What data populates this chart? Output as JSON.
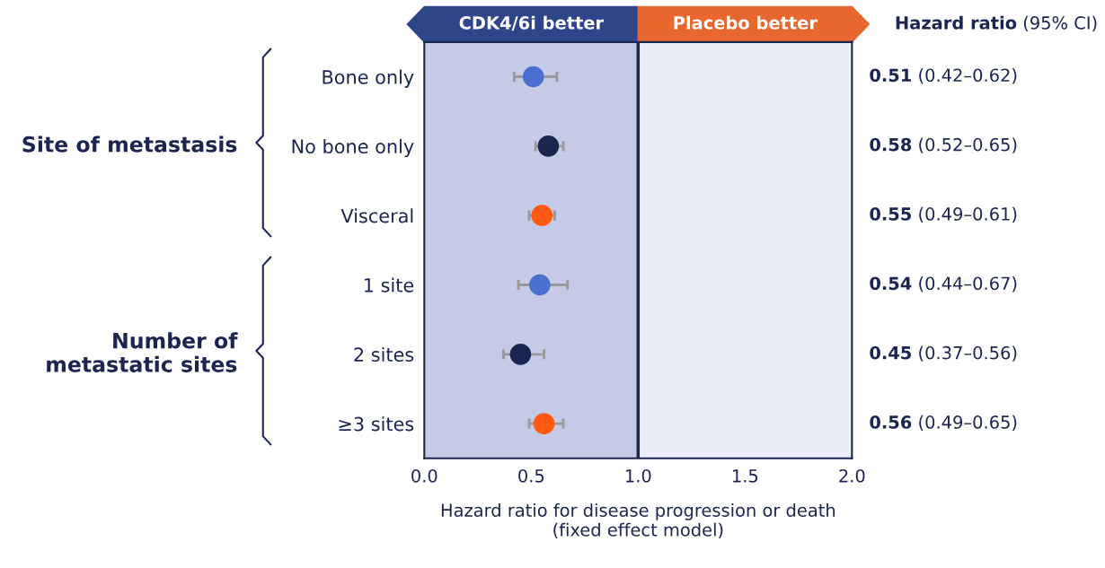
{
  "chart_data": {
    "type": "scatter",
    "orientation": "horizontal",
    "categories": [
      "Bone only",
      "No bone only",
      "Visceral",
      "1 site",
      "2 sites",
      "≥3 sites"
    ],
    "values": [
      0.51,
      0.58,
      0.55,
      0.54,
      0.45,
      0.56
    ],
    "errors": [
      [
        0.42,
        0.62
      ],
      [
        0.52,
        0.65
      ],
      [
        0.49,
        0.61
      ],
      [
        0.44,
        0.67
      ],
      [
        0.37,
        0.56
      ],
      [
        0.49,
        0.65
      ]
    ],
    "colors": [
      "#4a6fcf",
      "#1b2550",
      "#ff5a14",
      "#4a6fcf",
      "#1b2550",
      "#ff5a14"
    ],
    "value_labels": [
      "0.51 (0.42–0.62)",
      "0.58 (0.52–0.65)",
      "0.55 (0.49–0.61)",
      "0.54 (0.44–0.67)",
      "0.45 (0.37–0.56)",
      "0.56 (0.49–0.65)"
    ],
    "xlim": [
      0,
      2
    ],
    "xticks": [
      {
        "value": 0,
        "label": "0.0"
      },
      {
        "value": 0.5,
        "label": "0.5"
      },
      {
        "value": 1,
        "label": "1.0"
      },
      {
        "value": 1.5,
        "label": "1.5"
      },
      {
        "value": 2,
        "label": "2.0"
      }
    ],
    "xlabel": "Hazard ratio for disease progression or death\n(fixed effect model)",
    "ref_lines": [
      {
        "axis": "x",
        "value": 1,
        "color": "#1b2550"
      }
    ],
    "bands": [
      {
        "axis": "x",
        "from": 0,
        "to": 1,
        "color": "#c5cbe6"
      }
    ],
    "marker": "circle",
    "grid": false,
    "legend": false,
    "annotations": [
      "CDK4/6i better",
      "Placebo better",
      "Hazard ratio (95% CI)",
      "Site of metastasis",
      "Number of\nmetastatic sites"
    ]
  }
}
